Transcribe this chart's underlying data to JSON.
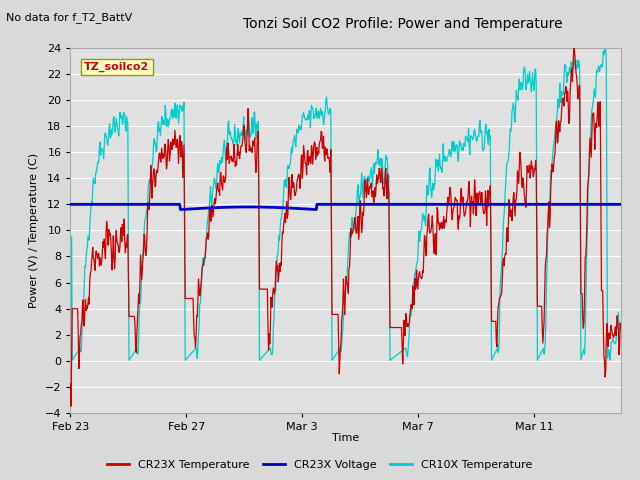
{
  "title": "Tonzi Soil CO2 Profile: Power and Temperature",
  "top_left_note": "No data for f_T2_BattV",
  "ylabel": "Power (V) / Temperature (C)",
  "xlabel": "Time",
  "legend_label": "TZ_soilco2",
  "ylim": [
    -4,
    24
  ],
  "yticks": [
    -4,
    -2,
    0,
    2,
    4,
    6,
    8,
    10,
    12,
    14,
    16,
    18,
    20,
    22,
    24
  ],
  "xtick_labels": [
    "Feb 23",
    "Feb 27",
    "Mar 3",
    "Mar 7",
    "Mar 11"
  ],
  "xtick_pos": [
    0,
    4,
    8,
    12,
    16
  ],
  "xlim": [
    0,
    19
  ],
  "bg_color": "#d9d9d9",
  "plot_bg_color": "#e0e0e0",
  "grid_color": "#ffffff",
  "cr23x_temp_color": "#cc0000",
  "cr23x_volt_color": "#0000cc",
  "cr10x_temp_color": "#00cccc",
  "cr23x_volt_value": 12.0,
  "series_labels": [
    "CR23X Temperature",
    "CR23X Voltage",
    "CR10X Temperature"
  ],
  "n_days": 19,
  "n_per_day": 48
}
